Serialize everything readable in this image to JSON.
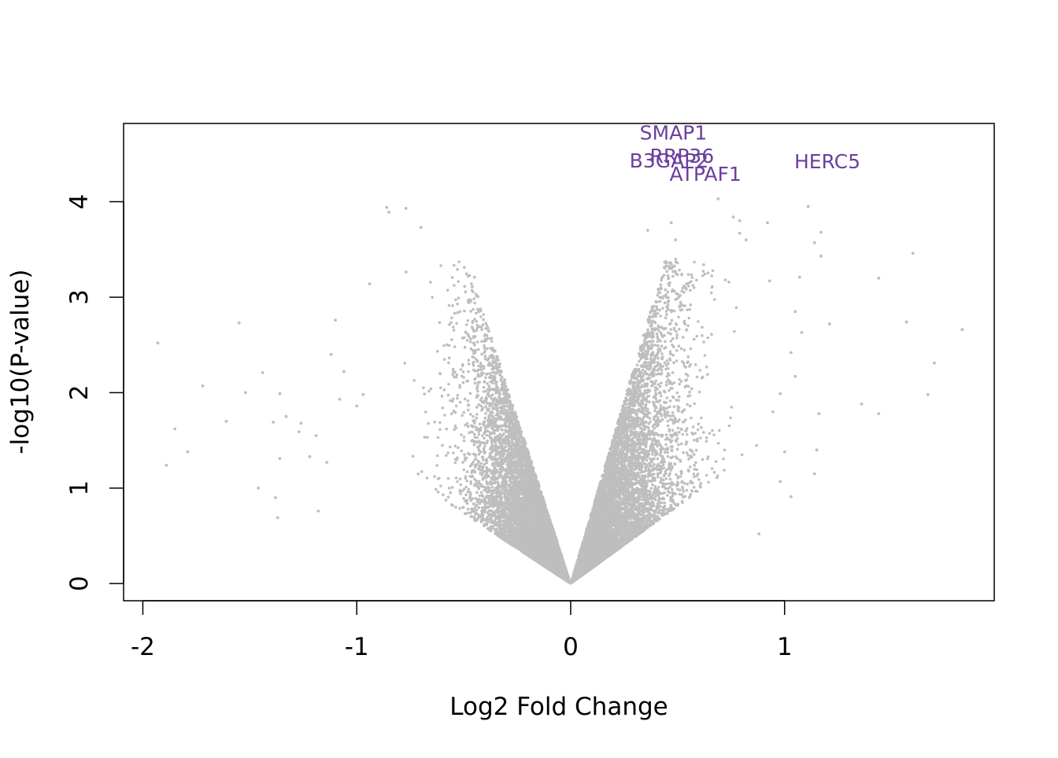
{
  "chart_data": {
    "type": "scatter",
    "title": "",
    "xlabel": "Log2 Fold Change",
    "ylabel": "-log10(P-value)",
    "xlim": [
      -2.09,
      1.98
    ],
    "ylim": [
      -0.18,
      4.82
    ],
    "x_ticks": [
      -2,
      -1,
      0,
      1
    ],
    "y_ticks": [
      0,
      1,
      2,
      3,
      4
    ],
    "grid": false,
    "legend": "none",
    "point_color": "#BEBEBE",
    "label_color": "#6B3FA0",
    "labeled_genes": [
      {
        "label": "SMAP1",
        "x": 0.48,
        "y": 4.65
      },
      {
        "label": "RRP36",
        "x": 0.52,
        "y": 4.41
      },
      {
        "label": "B3GAP2",
        "x": 0.46,
        "y": 4.36
      },
      {
        "label": "ATPAF1",
        "x": 0.63,
        "y": 4.22
      },
      {
        "label": "HERC5",
        "x": 1.2,
        "y": 4.35
      }
    ],
    "outlier_points": [
      {
        "x": -1.93,
        "y": 2.52
      },
      {
        "x": -1.89,
        "y": 1.24
      },
      {
        "x": -1.85,
        "y": 1.62
      },
      {
        "x": -1.79,
        "y": 1.38
      },
      {
        "x": -1.72,
        "y": 2.07
      },
      {
        "x": -1.61,
        "y": 1.7
      },
      {
        "x": -1.55,
        "y": 2.73
      },
      {
        "x": -1.52,
        "y": 2.0
      },
      {
        "x": -1.46,
        "y": 1.0
      },
      {
        "x": -1.44,
        "y": 2.21
      },
      {
        "x": -1.39,
        "y": 1.69
      },
      {
        "x": -1.38,
        "y": 0.9
      },
      {
        "x": -1.37,
        "y": 0.69
      },
      {
        "x": -1.36,
        "y": 1.31
      },
      {
        "x": -1.36,
        "y": 1.99
      },
      {
        "x": -1.33,
        "y": 1.75
      },
      {
        "x": -1.27,
        "y": 1.59
      },
      {
        "x": -1.26,
        "y": 1.68
      },
      {
        "x": -1.22,
        "y": 1.33
      },
      {
        "x": -1.19,
        "y": 1.55
      },
      {
        "x": -1.18,
        "y": 0.76
      },
      {
        "x": -1.14,
        "y": 1.27
      },
      {
        "x": -1.12,
        "y": 2.4
      },
      {
        "x": -1.1,
        "y": 2.76
      },
      {
        "x": -1.08,
        "y": 1.93
      },
      {
        "x": -1.06,
        "y": 2.22
      },
      {
        "x": -1.0,
        "y": 1.86
      },
      {
        "x": -0.97,
        "y": 1.98
      },
      {
        "x": -0.94,
        "y": 3.14
      },
      {
        "x": -0.86,
        "y": 3.94
      },
      {
        "x": -0.85,
        "y": 3.89
      },
      {
        "x": -0.77,
        "y": 3.93
      },
      {
        "x": -0.7,
        "y": 3.73
      },
      {
        "x": -0.45,
        "y": 3.21
      },
      {
        "x": -0.46,
        "y": 3.11
      },
      {
        "x": 0.36,
        "y": 3.7
      },
      {
        "x": 0.47,
        "y": 3.78
      },
      {
        "x": 0.49,
        "y": 3.6
      },
      {
        "x": 0.69,
        "y": 4.03
      },
      {
        "x": 0.76,
        "y": 3.84
      },
      {
        "x": 0.79,
        "y": 3.8
      },
      {
        "x": 0.79,
        "y": 3.67
      },
      {
        "x": 0.82,
        "y": 3.6
      },
      {
        "x": 0.92,
        "y": 3.78
      },
      {
        "x": 0.93,
        "y": 3.17
      },
      {
        "x": 1.03,
        "y": 2.42
      },
      {
        "x": 1.05,
        "y": 2.85
      },
      {
        "x": 1.07,
        "y": 3.21
      },
      {
        "x": 1.11,
        "y": 3.95
      },
      {
        "x": 1.14,
        "y": 3.57
      },
      {
        "x": 1.17,
        "y": 3.68
      },
      {
        "x": 1.17,
        "y": 3.43
      },
      {
        "x": 1.21,
        "y": 2.72
      },
      {
        "x": 1.14,
        "y": 1.15
      },
      {
        "x": 1.15,
        "y": 1.4
      },
      {
        "x": 1.16,
        "y": 1.78
      },
      {
        "x": 1.36,
        "y": 1.88
      },
      {
        "x": 1.44,
        "y": 1.78
      },
      {
        "x": 1.44,
        "y": 3.2
      },
      {
        "x": 1.57,
        "y": 2.74
      },
      {
        "x": 1.6,
        "y": 3.46
      },
      {
        "x": 1.67,
        "y": 1.98
      },
      {
        "x": 1.7,
        "y": 2.31
      },
      {
        "x": 1.83,
        "y": 2.66
      },
      {
        "x": 0.98,
        "y": 1.07
      },
      {
        "x": 1.03,
        "y": 0.91
      },
      {
        "x": 0.88,
        "y": 0.52
      },
      {
        "x": 0.98,
        "y": 1.99
      },
      {
        "x": 1.0,
        "y": 1.38
      },
      {
        "x": 1.05,
        "y": 2.17
      },
      {
        "x": 1.08,
        "y": 2.63
      }
    ],
    "bulk_distribution": {
      "description_of_cloud": "dense V-shaped cloud of approximately 15000 genes radiating from (0,0)",
      "point_count": 15000,
      "left_branch_max_abs_x": 1.1,
      "right_branch_max_abs_x": 1.0,
      "max_y_bulk": 3.4
    }
  }
}
